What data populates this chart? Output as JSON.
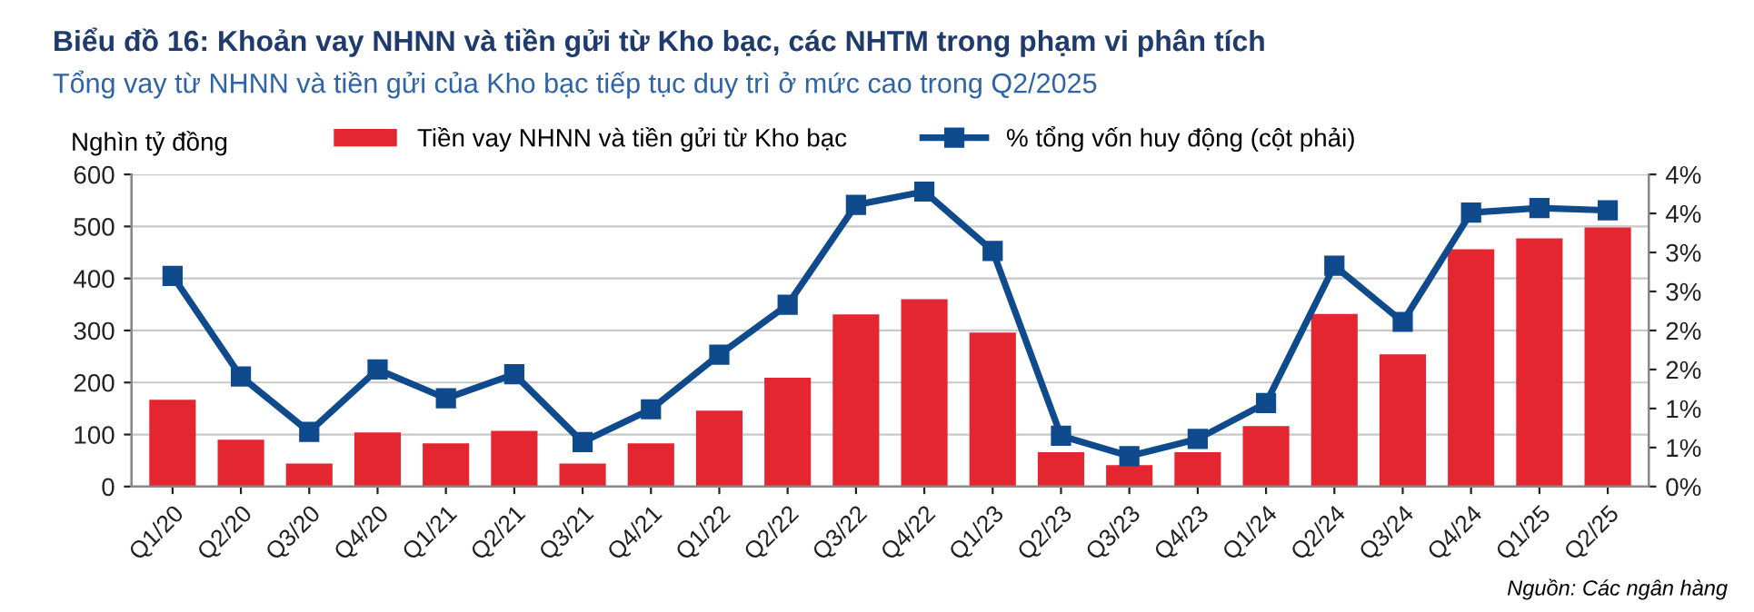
{
  "chart_data": {
    "type": "bar",
    "title": "Biểu đồ 16: Khoản vay NHNN và tiền gửi từ Kho bạc, các NHTM trong phạm vi phân tích",
    "subtitle": "Tổng vay từ NHNN và tiền gửi của Kho bạc tiếp tục duy trì ở mức cao trong Q2/2025",
    "ylabel": "Nghìn tỷ đồng",
    "annotations": [
      "Nguồn: Các ngân hàng"
    ],
    "categories": [
      "Q1/20",
      "Q2/20",
      "Q3/20",
      "Q4/20",
      "Q1/21",
      "Q2/21",
      "Q3/21",
      "Q4/21",
      "Q1/22",
      "Q2/22",
      "Q3/22",
      "Q4/22",
      "Q1/23",
      "Q2/23",
      "Q3/23",
      "Q4/23",
      "Q1/24",
      "Q2/24",
      "Q3/24",
      "Q4/24",
      "Q1/25",
      "Q2/25"
    ],
    "series": [
      {
        "name": "Tiền vay NHNN và tiền gửi từ Kho bạc",
        "color": "#e3262f",
        "values": [
          167,
          90,
          44,
          104,
          83,
          107,
          44,
          83,
          146,
          209,
          331,
          360,
          296,
          66,
          41,
          66,
          116,
          332,
          254,
          456,
          477,
          498
        ]
      },
      {
        "name": "% tổng vốn huy động (cột phải)",
        "type": "line",
        "axis": "y2",
        "color": "#0e4a8c",
        "marker": "square",
        "values": [
          2.7,
          1.41,
          0.7,
          1.5,
          1.13,
          1.44,
          0.57,
          0.99,
          1.69,
          2.33,
          3.61,
          3.78,
          3.02,
          0.65,
          0.39,
          0.61,
          1.07,
          2.83,
          2.11,
          3.51,
          3.57,
          3.54
        ]
      }
    ],
    "ylim": [
      0,
      600
    ],
    "yticks": [
      0,
      100,
      200,
      300,
      400,
      500,
      600
    ],
    "y2lim": [
      0,
      4
    ],
    "y2ticks": [
      {
        "value": 0,
        "label": "0%"
      },
      {
        "value": 0.5,
        "label": "1%"
      },
      {
        "value": 1,
        "label": "1%"
      },
      {
        "value": 1.5,
        "label": "2%"
      },
      {
        "value": 2,
        "label": "2%"
      },
      {
        "value": 2.5,
        "label": "3%"
      },
      {
        "value": 3,
        "label": "3%"
      },
      {
        "value": 3.5,
        "label": "4%"
      },
      {
        "value": 4,
        "label": "4%"
      }
    ],
    "grid": "y",
    "legend": "top"
  }
}
